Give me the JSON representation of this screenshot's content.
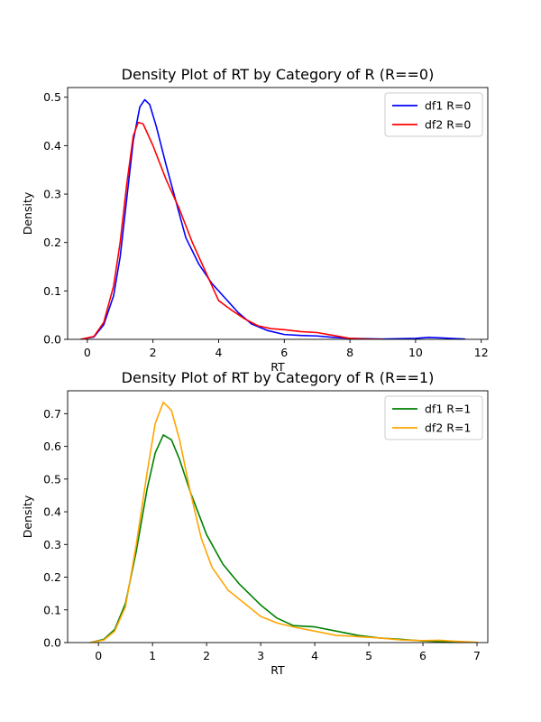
{
  "chart_data": [
    {
      "type": "line",
      "title": "Density Plot of RT by Category of R (R==0)",
      "xlabel": "RT",
      "ylabel": "Density",
      "xlim": [
        -0.6,
        12.2
      ],
      "ylim": [
        0,
        0.52
      ],
      "xticks": [
        0,
        2,
        4,
        6,
        8,
        10,
        12
      ],
      "yticks": [
        0.0,
        0.1,
        0.2,
        0.3,
        0.4,
        0.5
      ],
      "legend": "top-right",
      "series": [
        {
          "name": "df1 R=0",
          "color": "#0000ff",
          "points": [
            [
              -0.2,
              0
            ],
            [
              0.2,
              0.005
            ],
            [
              0.5,
              0.03
            ],
            [
              0.8,
              0.09
            ],
            [
              1.0,
              0.17
            ],
            [
              1.2,
              0.29
            ],
            [
              1.4,
              0.41
            ],
            [
              1.6,
              0.48
            ],
            [
              1.75,
              0.495
            ],
            [
              1.9,
              0.485
            ],
            [
              2.1,
              0.44
            ],
            [
              2.4,
              0.36
            ],
            [
              2.8,
              0.26
            ],
            [
              3.0,
              0.21
            ],
            [
              3.4,
              0.155
            ],
            [
              3.8,
              0.115
            ],
            [
              4.2,
              0.085
            ],
            [
              4.6,
              0.055
            ],
            [
              5.0,
              0.032
            ],
            [
              5.5,
              0.018
            ],
            [
              6.0,
              0.01
            ],
            [
              6.5,
              0.008
            ],
            [
              7.0,
              0.007
            ],
            [
              7.5,
              0.004
            ],
            [
              8.0,
              0.002
            ],
            [
              9.0,
              0.0005
            ],
            [
              10.0,
              0.002
            ],
            [
              10.4,
              0.004
            ],
            [
              10.8,
              0.003
            ],
            [
              11.5,
              0.0005
            ]
          ]
        },
        {
          "name": "df2 R=0",
          "color": "#ff0000",
          "points": [
            [
              -0.2,
              0
            ],
            [
              0.2,
              0.006
            ],
            [
              0.5,
              0.035
            ],
            [
              0.8,
              0.11
            ],
            [
              1.0,
              0.2
            ],
            [
              1.2,
              0.32
            ],
            [
              1.4,
              0.42
            ],
            [
              1.55,
              0.448
            ],
            [
              1.7,
              0.445
            ],
            [
              2.0,
              0.4
            ],
            [
              2.4,
              0.33
            ],
            [
              2.8,
              0.27
            ],
            [
              3.2,
              0.2
            ],
            [
              3.6,
              0.14
            ],
            [
              4.0,
              0.08
            ],
            [
              4.4,
              0.06
            ],
            [
              4.8,
              0.042
            ],
            [
              5.2,
              0.028
            ],
            [
              5.6,
              0.022
            ],
            [
              6.0,
              0.02
            ],
            [
              6.5,
              0.016
            ],
            [
              7.0,
              0.014
            ],
            [
              7.5,
              0.008
            ],
            [
              8.0,
              0.002
            ],
            [
              8.5,
              0.0005
            ],
            [
              9.0,
              0
            ]
          ]
        }
      ]
    },
    {
      "type": "line",
      "title": "Density Plot of RT by Category of R (R==1)",
      "xlabel": "RT",
      "ylabel": "Density",
      "xlim": [
        -0.57,
        7.2
      ],
      "ylim": [
        0,
        0.77
      ],
      "xticks": [
        0,
        1,
        2,
        3,
        4,
        5,
        6,
        7
      ],
      "yticks": [
        0.0,
        0.1,
        0.2,
        0.3,
        0.4,
        0.5,
        0.6,
        0.7
      ],
      "legend": "top-right",
      "series": [
        {
          "name": "df1 R=1",
          "color": "#008000",
          "points": [
            [
              -0.15,
              0
            ],
            [
              0.1,
              0.01
            ],
            [
              0.3,
              0.04
            ],
            [
              0.5,
              0.12
            ],
            [
              0.7,
              0.28
            ],
            [
              0.9,
              0.47
            ],
            [
              1.05,
              0.58
            ],
            [
              1.2,
              0.635
            ],
            [
              1.35,
              0.62
            ],
            [
              1.5,
              0.56
            ],
            [
              1.7,
              0.46
            ],
            [
              2.0,
              0.33
            ],
            [
              2.3,
              0.24
            ],
            [
              2.6,
              0.18
            ],
            [
              3.0,
              0.115
            ],
            [
              3.3,
              0.075
            ],
            [
              3.6,
              0.052
            ],
            [
              4.0,
              0.048
            ],
            [
              4.4,
              0.035
            ],
            [
              4.8,
              0.022
            ],
            [
              5.2,
              0.014
            ],
            [
              5.6,
              0.01
            ],
            [
              6.0,
              0.005
            ],
            [
              6.5,
              0.002
            ],
            [
              7.0,
              0
            ]
          ]
        },
        {
          "name": "df2 R=1",
          "color": "#ffa500",
          "points": [
            [
              -0.15,
              0
            ],
            [
              0.1,
              0.008
            ],
            [
              0.3,
              0.035
            ],
            [
              0.5,
              0.11
            ],
            [
              0.7,
              0.3
            ],
            [
              0.9,
              0.52
            ],
            [
              1.05,
              0.67
            ],
            [
              1.2,
              0.735
            ],
            [
              1.35,
              0.71
            ],
            [
              1.5,
              0.62
            ],
            [
              1.7,
              0.46
            ],
            [
              1.9,
              0.32
            ],
            [
              2.1,
              0.23
            ],
            [
              2.4,
              0.16
            ],
            [
              2.7,
              0.12
            ],
            [
              3.0,
              0.08
            ],
            [
              3.3,
              0.06
            ],
            [
              3.6,
              0.048
            ],
            [
              4.0,
              0.035
            ],
            [
              4.4,
              0.022
            ],
            [
              4.8,
              0.018
            ],
            [
              5.2,
              0.014
            ],
            [
              5.6,
              0.008
            ],
            [
              6.0,
              0.006
            ],
            [
              6.3,
              0.007
            ],
            [
              6.6,
              0.004
            ],
            [
              7.0,
              0.001
            ]
          ]
        }
      ]
    }
  ]
}
